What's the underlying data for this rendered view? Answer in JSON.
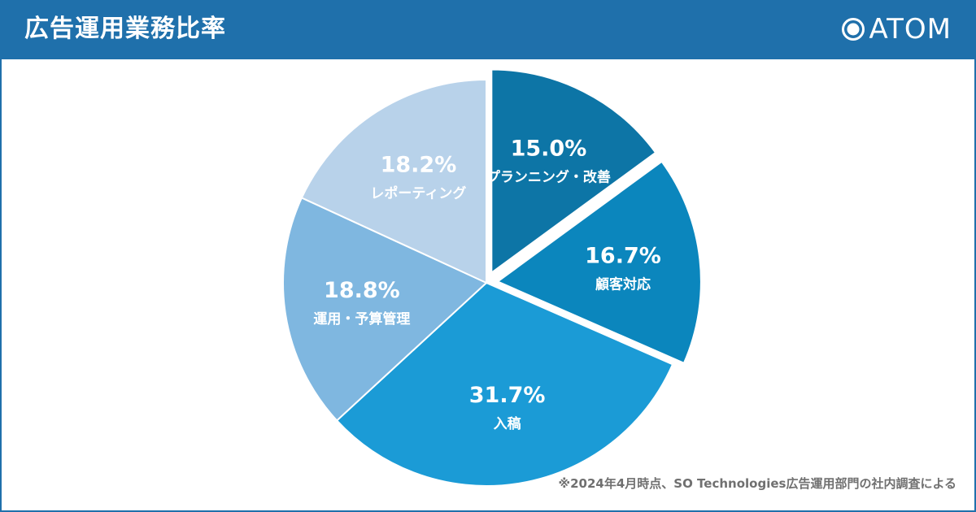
{
  "header": {
    "title": "広告運用業務比率",
    "logo_text": "ATOM"
  },
  "colors": {
    "header_bg": "#1f70ab",
    "frame": "#1f70ab",
    "footnote": "#707070"
  },
  "chart_data": {
    "type": "pie",
    "title": "広告運用業務比率",
    "start": "12 o'clock",
    "direction": "clockwise",
    "exploded": [
      "プランニング・改善",
      "顧客対応"
    ],
    "categories": [
      "プランニング・改善",
      "顧客対応",
      "入稿",
      "運用・予算管理",
      "レポーティング"
    ],
    "values": [
      15.0,
      16.7,
      31.7,
      18.8,
      18.2
    ],
    "labels": [
      "15.0%",
      "16.7%",
      "31.7%",
      "18.8%",
      "18.2%"
    ],
    "colors": [
      "#0d75a6",
      "#0b86bd",
      "#1b9bd6",
      "#7fb7e0",
      "#b8d2ea"
    ],
    "label_colors": [
      "#ffffff",
      "#ffffff",
      "#ffffff",
      "#ffffff",
      "#ffffff"
    ]
  },
  "footnote": "※2024年4月時点、SO Technologies広告運用部門の社内調査による"
}
